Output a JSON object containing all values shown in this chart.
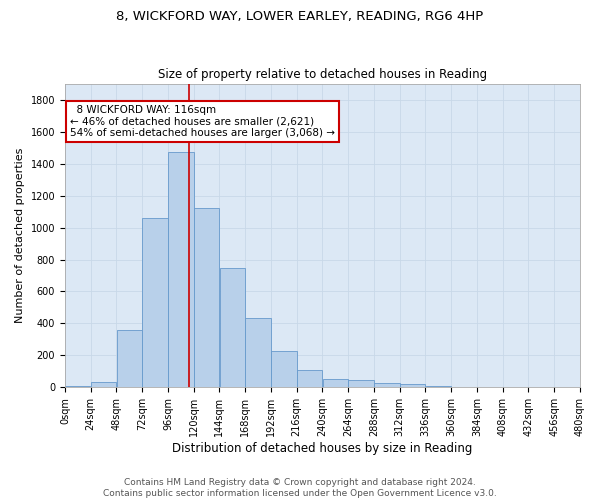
{
  "title1": "8, WICKFORD WAY, LOWER EARLEY, READING, RG6 4HP",
  "title2": "Size of property relative to detached houses in Reading",
  "xlabel": "Distribution of detached houses by size in Reading",
  "ylabel": "Number of detached properties",
  "bar_values": [
    10,
    35,
    360,
    1060,
    1470,
    1120,
    750,
    435,
    225,
    110,
    55,
    45,
    30,
    22,
    10,
    5,
    2,
    2,
    1,
    1
  ],
  "bin_edges": [
    0,
    24,
    48,
    72,
    96,
    120,
    144,
    168,
    192,
    216,
    240,
    264,
    288,
    312,
    336,
    360,
    384,
    408,
    432,
    456,
    480
  ],
  "bar_color": "#b8d0ea",
  "bar_edge_color": "#6699cc",
  "property_sqm": 116,
  "property_label": "8 WICKFORD WAY: 116sqm",
  "pct_smaller": 46,
  "n_smaller": 2621,
  "pct_larger": 54,
  "n_larger": 3068,
  "annotation_box_color": "#ffffff",
  "annotation_box_edge": "#cc0000",
  "vline_color": "#cc0000",
  "grid_color": "#c8d8e8",
  "background_color": "#dce8f5",
  "footer1": "Contains HM Land Registry data © Crown copyright and database right 2024.",
  "footer2": "Contains public sector information licensed under the Open Government Licence v3.0.",
  "ylim": [
    0,
    1900
  ],
  "title1_fontsize": 9.5,
  "title2_fontsize": 8.5,
  "xlabel_fontsize": 8.5,
  "ylabel_fontsize": 8,
  "tick_fontsize": 7,
  "annotation_fontsize": 7.5,
  "footer_fontsize": 6.5
}
